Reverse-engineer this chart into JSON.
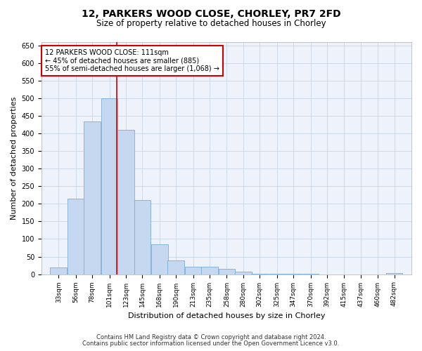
{
  "title_line1": "12, PARKERS WOOD CLOSE, CHORLEY, PR7 2FD",
  "title_line2": "Size of property relative to detached houses in Chorley",
  "xlabel": "Distribution of detached houses by size in Chorley",
  "ylabel": "Number of detached properties",
  "footer_line1": "Contains HM Land Registry data © Crown copyright and database right 2024.",
  "footer_line2": "Contains public sector information licensed under the Open Government Licence v3.0.",
  "annotation_line1": "12 PARKERS WOOD CLOSE: 111sqm",
  "annotation_line2": "← 45% of detached houses are smaller (885)",
  "annotation_line3": "55% of semi-detached houses are larger (1,068) →",
  "property_size": 111,
  "bar_color": "#c5d8f0",
  "bar_edge_color": "#7aadd4",
  "vline_color": "#cc0000",
  "annotation_box_color": "#cc0000",
  "bg_color": "#eef2fb",
  "grid_color": "#c8d4e8",
  "categories": [
    "33sqm",
    "56sqm",
    "78sqm",
    "101sqm",
    "123sqm",
    "145sqm",
    "168sqm",
    "190sqm",
    "213sqm",
    "235sqm",
    "258sqm",
    "280sqm",
    "302sqm",
    "325sqm",
    "347sqm",
    "370sqm",
    "392sqm",
    "415sqm",
    "437sqm",
    "460sqm",
    "482sqm"
  ],
  "bin_edges": [
    33,
    56,
    78,
    101,
    123,
    145,
    168,
    190,
    213,
    235,
    258,
    280,
    302,
    325,
    347,
    370,
    392,
    415,
    437,
    460,
    482
  ],
  "bar_heights": [
    20,
    215,
    435,
    500,
    410,
    210,
    85,
    40,
    22,
    22,
    15,
    8,
    2,
    1,
    1,
    1,
    0,
    0,
    0,
    0,
    3
  ],
  "ylim": [
    0,
    660
  ],
  "yticks": [
    0,
    50,
    100,
    150,
    200,
    250,
    300,
    350,
    400,
    450,
    500,
    550,
    600,
    650
  ]
}
